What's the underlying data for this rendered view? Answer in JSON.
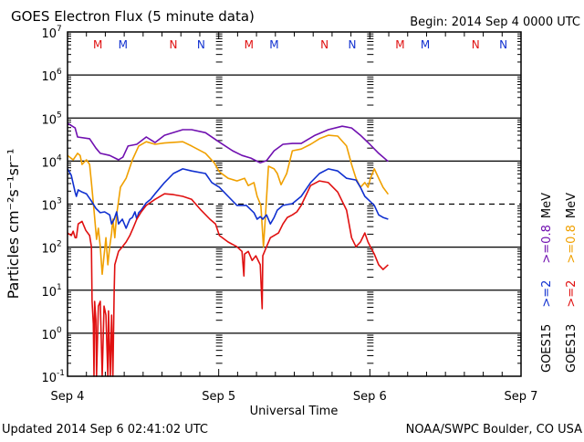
{
  "chart_data": {
    "type": "line",
    "title": "GOES Electron Flux (5 minute data)",
    "begin_label": "Begin: 2014 Sep 4 0000 UTC",
    "xlabel": "Universal Time",
    "ylabel": "Particles cm⁻²s⁻¹sr⁻¹",
    "x_unit": "hours since 2014 Sep 4 0000 UTC",
    "xlim": [
      0,
      72
    ],
    "x_ticks": [
      {
        "h": 0,
        "label": "Sep 4"
      },
      {
        "h": 24,
        "label": "Sep 5"
      },
      {
        "h": 48,
        "label": "Sep 6"
      },
      {
        "h": 72,
        "label": "Sep 7"
      }
    ],
    "y_scale": "log",
    "ylim_log10": [
      -1,
      7
    ],
    "y_ticks": [
      {
        "base": "10",
        "exp": "7"
      },
      {
        "base": "10",
        "exp": "6"
      },
      {
        "base": "10",
        "exp": "5"
      },
      {
        "base": "10",
        "exp": "4"
      },
      {
        "base": "10",
        "exp": "3"
      },
      {
        "base": "10",
        "exp": "2"
      },
      {
        "base": "10",
        "exp": "1"
      },
      {
        "base": "10",
        "exp": "0"
      },
      {
        "base": "10",
        "exp": "-1"
      }
    ],
    "threshold_log10": 3,
    "markers": [
      {
        "h": 4.8,
        "label": "M",
        "color": "#e01010"
      },
      {
        "h": 8.8,
        "label": "M",
        "color": "#1030d0"
      },
      {
        "h": 16.8,
        "label": "N",
        "color": "#e01010"
      },
      {
        "h": 21.2,
        "label": "N",
        "color": "#1030d0"
      },
      {
        "h": 28.8,
        "label": "M",
        "color": "#e01010"
      },
      {
        "h": 32.8,
        "label": "M",
        "color": "#1030d0"
      },
      {
        "h": 40.8,
        "label": "N",
        "color": "#e01010"
      },
      {
        "h": 45.2,
        "label": "N",
        "color": "#1030d0"
      },
      {
        "h": 52.8,
        "label": "M",
        "color": "#e01010"
      },
      {
        "h": 56.8,
        "label": "M",
        "color": "#1030d0"
      },
      {
        "h": 64.8,
        "label": "N",
        "color": "#e01010"
      },
      {
        "h": 69.2,
        "label": "N",
        "color": "#1030d0"
      }
    ],
    "legend": [
      {
        "satellite": "GOES15",
        "low": ">=2",
        "low_color": "#1030d0",
        "high": ">=0.8",
        "high_color": "#7010b0",
        "unit": "MeV"
      },
      {
        "satellite": "GOES13",
        "low": ">=2",
        "low_color": "#e01010",
        "high": ">=0.8",
        "high_color": "#f0a000",
        "unit": "MeV"
      }
    ],
    "series": [
      {
        "name": "GOES15 >=0.8 MeV",
        "color": "#7010b0",
        "points_log10": [
          [
            0,
            4.88
          ],
          [
            1.2,
            4.77
          ],
          [
            1.6,
            4.56
          ],
          [
            3.5,
            4.52
          ],
          [
            4.5,
            4.3
          ],
          [
            5.2,
            4.18
          ],
          [
            6.7,
            4.13
          ],
          [
            8.1,
            4.03
          ],
          [
            8.8,
            4.09
          ],
          [
            9.6,
            4.35
          ],
          [
            11,
            4.39
          ],
          [
            12.5,
            4.56
          ],
          [
            13.9,
            4.43
          ],
          [
            15.4,
            4.6
          ],
          [
            18.3,
            4.73
          ],
          [
            19.7,
            4.73
          ],
          [
            21.9,
            4.66
          ],
          [
            24,
            4.45
          ],
          [
            26.2,
            4.24
          ],
          [
            27.7,
            4.13
          ],
          [
            29.1,
            4.07
          ],
          [
            30.6,
            3.96
          ],
          [
            31.6,
            4.01
          ],
          [
            32.8,
            4.24
          ],
          [
            34.2,
            4.39
          ],
          [
            35.7,
            4.41
          ],
          [
            37.1,
            4.41
          ],
          [
            39.3,
            4.6
          ],
          [
            41.4,
            4.73
          ],
          [
            43.6,
            4.81
          ],
          [
            45.1,
            4.77
          ],
          [
            46.5,
            4.6
          ],
          [
            48,
            4.39
          ],
          [
            49.4,
            4.18
          ],
          [
            50.9,
            3.99
          ]
        ]
      },
      {
        "name": "GOES13 >=0.8 MeV",
        "color": "#f0a000",
        "points_log10": [
          [
            0,
            4.13
          ],
          [
            0.9,
            4.03
          ],
          [
            1.6,
            4.18
          ],
          [
            2,
            4.13
          ],
          [
            2.3,
            3.92
          ],
          [
            3,
            4.03
          ],
          [
            3.5,
            3.92
          ],
          [
            3.8,
            3.5
          ],
          [
            4.2,
            2.86
          ],
          [
            4.6,
            2.18
          ],
          [
            4.9,
            2.44
          ],
          [
            5.2,
            2.01
          ],
          [
            5.5,
            1.37
          ],
          [
            5.8,
            1.8
          ],
          [
            6.1,
            2.22
          ],
          [
            6.4,
            1.59
          ],
          [
            6.7,
            2.01
          ],
          [
            7,
            2.33
          ],
          [
            7.2,
            2.65
          ],
          [
            7.5,
            2.22
          ],
          [
            7.8,
            2.75
          ],
          [
            8.4,
            3.39
          ],
          [
            9.3,
            3.6
          ],
          [
            10.3,
            4.03
          ],
          [
            11.3,
            4.35
          ],
          [
            12.5,
            4.45
          ],
          [
            13.9,
            4.39
          ],
          [
            15.4,
            4.42
          ],
          [
            18.3,
            4.45
          ],
          [
            19.7,
            4.35
          ],
          [
            21.9,
            4.18
          ],
          [
            23.3,
            3.96
          ],
          [
            24.1,
            3.75
          ],
          [
            25.5,
            3.6
          ],
          [
            26.9,
            3.54
          ],
          [
            28.1,
            3.6
          ],
          [
            28.7,
            3.43
          ],
          [
            29.6,
            3.5
          ],
          [
            30.1,
            3.18
          ],
          [
            30.7,
            2.97
          ],
          [
            31.1,
            2.01
          ],
          [
            31.4,
            2.65
          ],
          [
            31.9,
            3.88
          ],
          [
            32.8,
            3.82
          ],
          [
            33.3,
            3.71
          ],
          [
            33.9,
            3.45
          ],
          [
            34.8,
            3.71
          ],
          [
            35.7,
            4.24
          ],
          [
            37.1,
            4.28
          ],
          [
            38.6,
            4.39
          ],
          [
            40,
            4.52
          ],
          [
            41.4,
            4.6
          ],
          [
            42.9,
            4.58
          ],
          [
            44.3,
            4.35
          ],
          [
            45.1,
            3.92
          ],
          [
            45.8,
            3.6
          ],
          [
            46.5,
            3.39
          ],
          [
            47.2,
            3.5
          ],
          [
            47.7,
            3.39
          ],
          [
            48.1,
            3.6
          ],
          [
            48.7,
            3.82
          ],
          [
            49.4,
            3.6
          ],
          [
            50.1,
            3.39
          ],
          [
            50.9,
            3.23
          ]
        ]
      },
      {
        "name": "GOES15 >=2 MeV",
        "color": "#1030d0",
        "points_log10": [
          [
            0,
            3.82
          ],
          [
            0.6,
            3.67
          ],
          [
            1.2,
            3.28
          ],
          [
            1.4,
            3.18
          ],
          [
            1.7,
            3.33
          ],
          [
            2.3,
            3.28
          ],
          [
            3,
            3.24
          ],
          [
            3.8,
            3.07
          ],
          [
            4.5,
            2.9
          ],
          [
            5.2,
            2.8
          ],
          [
            5.9,
            2.82
          ],
          [
            6.7,
            2.75
          ],
          [
            7,
            2.54
          ],
          [
            7.4,
            2.65
          ],
          [
            7.8,
            2.82
          ],
          [
            8.1,
            2.54
          ],
          [
            8.7,
            2.65
          ],
          [
            9.3,
            2.44
          ],
          [
            9.9,
            2.65
          ],
          [
            10.3,
            2.69
          ],
          [
            10.7,
            2.82
          ],
          [
            11,
            2.65
          ],
          [
            11.3,
            2.8
          ],
          [
            11.7,
            2.86
          ],
          [
            12.5,
            3.03
          ],
          [
            13.2,
            3.11
          ],
          [
            13.9,
            3.24
          ],
          [
            15.4,
            3.5
          ],
          [
            16.8,
            3.71
          ],
          [
            18.3,
            3.82
          ],
          [
            19.7,
            3.77
          ],
          [
            21.9,
            3.71
          ],
          [
            22.9,
            3.5
          ],
          [
            24.1,
            3.39
          ],
          [
            25.5,
            3.18
          ],
          [
            26.9,
            2.97
          ],
          [
            28.4,
            2.97
          ],
          [
            29.6,
            2.8
          ],
          [
            30.1,
            2.65
          ],
          [
            30.6,
            2.71
          ],
          [
            31,
            2.65
          ],
          [
            31.6,
            2.75
          ],
          [
            32.2,
            2.54
          ],
          [
            32.8,
            2.69
          ],
          [
            33.3,
            2.86
          ],
          [
            34.2,
            2.97
          ],
          [
            35.7,
            3.01
          ],
          [
            37.1,
            3.18
          ],
          [
            38.6,
            3.5
          ],
          [
            40,
            3.71
          ],
          [
            41.4,
            3.82
          ],
          [
            42.9,
            3.77
          ],
          [
            44.3,
            3.6
          ],
          [
            45.8,
            3.56
          ],
          [
            46.5,
            3.39
          ],
          [
            47.2,
            3.18
          ],
          [
            48,
            3.07
          ],
          [
            48.7,
            2.97
          ],
          [
            49.4,
            2.75
          ],
          [
            50.1,
            2.69
          ],
          [
            50.9,
            2.65
          ]
        ]
      },
      {
        "name": "GOES13 >=2 MeV",
        "color": "#e01010",
        "points_log10": [
          [
            0,
            2.33
          ],
          [
            0.6,
            2.27
          ],
          [
            0.9,
            2.37
          ],
          [
            1.2,
            2.22
          ],
          [
            1.4,
            2.22
          ],
          [
            1.7,
            2.54
          ],
          [
            2.3,
            2.6
          ],
          [
            2.9,
            2.39
          ],
          [
            3.5,
            2.27
          ],
          [
            3.8,
            2.01
          ],
          [
            3.9,
            0.74
          ],
          [
            4.1,
            0.21
          ],
          [
            4.2,
            -1
          ],
          [
            4.3,
            0.74
          ],
          [
            4.5,
            0.31
          ],
          [
            4.6,
            -1
          ],
          [
            4.9,
            0.63
          ],
          [
            5.2,
            0.74
          ],
          [
            5.5,
            -1
          ],
          [
            5.8,
            0.63
          ],
          [
            6.1,
            0.42
          ],
          [
            6.4,
            -1
          ],
          [
            6.5,
            0.52
          ],
          [
            6.8,
            -1
          ],
          [
            7,
            0.42
          ],
          [
            7.2,
            -1
          ],
          [
            7.4,
            0.95
          ],
          [
            7.5,
            1.59
          ],
          [
            8.1,
            1.9
          ],
          [
            8.7,
            2.01
          ],
          [
            9.3,
            2.12
          ],
          [
            9.9,
            2.27
          ],
          [
            10.4,
            2.44
          ],
          [
            11,
            2.65
          ],
          [
            11.7,
            2.82
          ],
          [
            12.5,
            2.97
          ],
          [
            13.9,
            3.11
          ],
          [
            15.4,
            3.24
          ],
          [
            16.8,
            3.22
          ],
          [
            18.3,
            3.18
          ],
          [
            19.7,
            3.11
          ],
          [
            21.2,
            2.86
          ],
          [
            22.6,
            2.65
          ],
          [
            23.5,
            2.54
          ],
          [
            24.1,
            2.27
          ],
          [
            25.5,
            2.12
          ],
          [
            26.9,
            2.01
          ],
          [
            27.7,
            1.9
          ],
          [
            28,
            1.33
          ],
          [
            28.1,
            1.84
          ],
          [
            28.7,
            1.9
          ],
          [
            29.3,
            1.69
          ],
          [
            29.9,
            1.8
          ],
          [
            30.6,
            1.59
          ],
          [
            30.9,
            0.57
          ],
          [
            31,
            1.8
          ],
          [
            31.6,
            2.01
          ],
          [
            32.2,
            2.22
          ],
          [
            32.8,
            2.27
          ],
          [
            33.5,
            2.33
          ],
          [
            34.2,
            2.54
          ],
          [
            34.9,
            2.69
          ],
          [
            35.7,
            2.75
          ],
          [
            36.4,
            2.82
          ],
          [
            37.1,
            2.97
          ],
          [
            38.6,
            3.43
          ],
          [
            40,
            3.54
          ],
          [
            41.4,
            3.5
          ],
          [
            42.9,
            3.28
          ],
          [
            44.3,
            2.86
          ],
          [
            45.1,
            2.22
          ],
          [
            45.8,
            2.01
          ],
          [
            46.5,
            2.12
          ],
          [
            47.2,
            2.33
          ],
          [
            47.7,
            2.12
          ],
          [
            48.1,
            2.01
          ],
          [
            48.7,
            1.84
          ],
          [
            49.4,
            1.59
          ],
          [
            50.1,
            1.48
          ],
          [
            50.9,
            1.59
          ]
        ]
      }
    ]
  },
  "footer": {
    "updated": "Updated 2014 Sep  6 02:41:02 UTC",
    "credit": "NOAA/SWPC Boulder, CO USA"
  }
}
